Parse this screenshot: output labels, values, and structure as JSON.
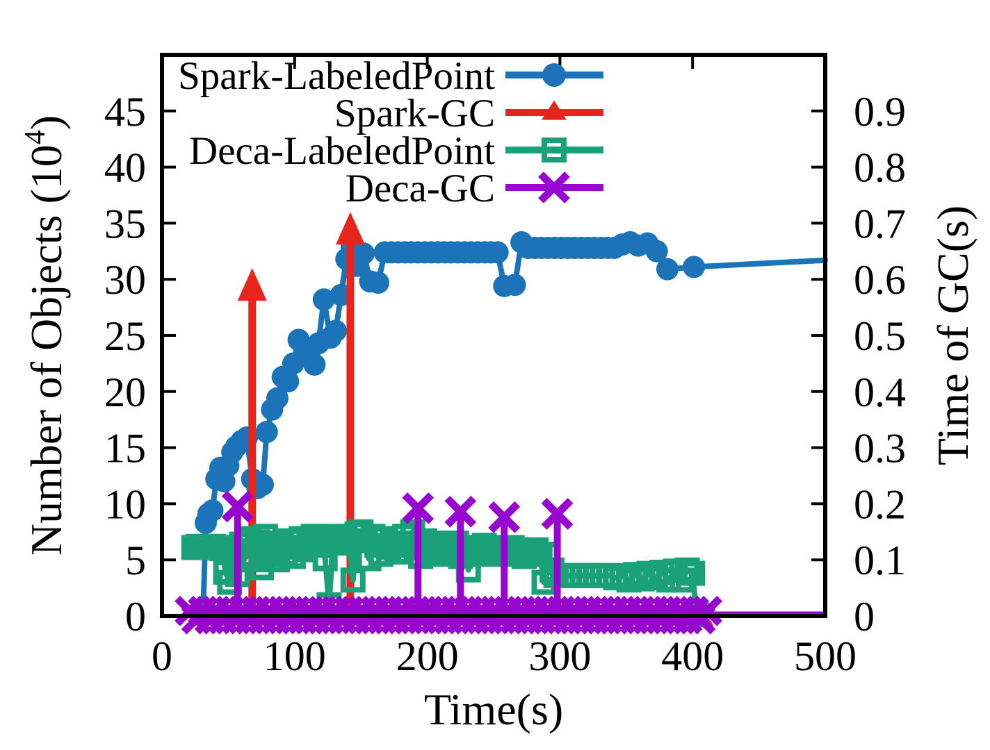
{
  "chart_data": {
    "type": "line",
    "title": "",
    "xlabel": "Time(s)",
    "ylabel_left": {
      "pre": "Number of Objects (10",
      "sup": "4",
      "post": ")"
    },
    "ylabel_right": "Time of GC(s)",
    "xlim": [
      0,
      500
    ],
    "ylim_left": [
      0,
      50
    ],
    "ylim_right": [
      0,
      1.0
    ],
    "xticks": [
      "0",
      "100",
      "200",
      "300",
      "400",
      "500"
    ],
    "yticks_left": [
      "0",
      "5",
      "10",
      "15",
      "20",
      "25",
      "30",
      "35",
      "40",
      "45"
    ],
    "yticks_right": [
      "0",
      "0.1",
      "0.2",
      "0.3",
      "0.4",
      "0.5",
      "0.6",
      "0.7",
      "0.8",
      "0.9"
    ],
    "grid": false,
    "legend_position": "top-left-inside",
    "axis_color": "#000000",
    "background": "#ffffff",
    "series": [
      {
        "id": "spark-labeledpoint",
        "name": "Spark-LabeledPoint",
        "color": "#1b74b7",
        "axis": "left",
        "marker": "circle",
        "style": "line-points",
        "points": [
          [
            31,
            0.2
          ],
          [
            33,
            8.3
          ],
          [
            35,
            9.1
          ],
          [
            38,
            9.4
          ],
          [
            41,
            12.2
          ],
          [
            44,
            13.2
          ],
          [
            47,
            12.0
          ],
          [
            50,
            13.4
          ],
          [
            53,
            14.6
          ],
          [
            56,
            15.1
          ],
          [
            60,
            15.6
          ],
          [
            64,
            15.9
          ],
          [
            68,
            12.2
          ],
          [
            72,
            11.4
          ],
          [
            76,
            11.7
          ],
          [
            79,
            16.4
          ],
          [
            83,
            18.4
          ],
          [
            87,
            19.4
          ],
          [
            91,
            21.3
          ],
          [
            95,
            20.9
          ],
          [
            99,
            22.5
          ],
          [
            103,
            24.6
          ],
          [
            107,
            24.0
          ],
          [
            111,
            23.2
          ],
          [
            115,
            22.4
          ],
          [
            118,
            24.3
          ],
          [
            122,
            28.2
          ],
          [
            127,
            24.8
          ],
          [
            131,
            25.4
          ],
          [
            135,
            28.6
          ],
          [
            139,
            31.8
          ],
          [
            143,
            32.8
          ],
          [
            147,
            31.2
          ],
          [
            152,
            32.3
          ],
          [
            157,
            29.8
          ],
          [
            163,
            29.7
          ],
          [
            168,
            32.4
          ],
          [
            173,
            32.4
          ],
          [
            178,
            32.4
          ],
          [
            183,
            32.4
          ],
          [
            188,
            32.4
          ],
          [
            193,
            32.4
          ],
          [
            198,
            32.4
          ],
          [
            203,
            32.4
          ],
          [
            208,
            32.4
          ],
          [
            213,
            32.4
          ],
          [
            218,
            32.4
          ],
          [
            223,
            32.4
          ],
          [
            228,
            32.4
          ],
          [
            233,
            32.4
          ],
          [
            238,
            32.4
          ],
          [
            243,
            32.4
          ],
          [
            248,
            32.4
          ],
          [
            253,
            32.4
          ],
          [
            258,
            29.4
          ],
          [
            266,
            29.5
          ],
          [
            271,
            33.3
          ],
          [
            276,
            32.8
          ],
          [
            281,
            32.8
          ],
          [
            286,
            32.8
          ],
          [
            291,
            32.8
          ],
          [
            296,
            32.8
          ],
          [
            301,
            32.8
          ],
          [
            306,
            32.8
          ],
          [
            311,
            32.8
          ],
          [
            316,
            32.8
          ],
          [
            321,
            32.8
          ],
          [
            326,
            32.8
          ],
          [
            331,
            32.8
          ],
          [
            336,
            32.8
          ],
          [
            341,
            32.8
          ],
          [
            347,
            33.1
          ],
          [
            353,
            33.3
          ],
          [
            359,
            33.0
          ],
          [
            366,
            33.2
          ],
          [
            373,
            32.5
          ],
          [
            381,
            30.9
          ],
          [
            401,
            31.1
          ],
          [
            500,
            31.7
          ]
        ]
      },
      {
        "id": "spark-gc",
        "name": "Spark-GC",
        "color": "#e8251d",
        "axis": "right",
        "marker": "triangle",
        "style": "impulse-arrows",
        "spikes": [
          [
            68,
            0.62
          ],
          [
            142,
            0.72
          ]
        ],
        "baseline": {
          "t_start": 23,
          "t_end": 408,
          "step": 5,
          "value": 0.004
        }
      },
      {
        "id": "deca-labeledpoint",
        "name": "Deca-LabeledPoint",
        "color": "#1ba178",
        "axis": "left",
        "marker": "square-open",
        "style": "line-points",
        "points": [
          [
            24,
            6.1
          ],
          [
            27,
            6.2
          ],
          [
            30,
            6.1
          ],
          [
            33,
            6.2
          ],
          [
            36,
            6.1
          ],
          [
            39,
            6.2
          ],
          [
            42,
            6.1
          ],
          [
            45,
            6.0
          ],
          [
            48,
            3.9
          ],
          [
            51,
            3.0
          ],
          [
            54,
            5.8
          ],
          [
            57,
            3.7
          ],
          [
            60,
            6.4
          ],
          [
            63,
            5.2
          ],
          [
            66,
            6.9
          ],
          [
            69,
            5.0
          ],
          [
            72,
            6.6
          ],
          [
            75,
            4.3
          ],
          [
            78,
            7.1
          ],
          [
            81,
            5.5
          ],
          [
            84,
            6.5
          ],
          [
            87,
            5.0
          ],
          [
            90,
            6.3
          ],
          [
            93,
            5.5
          ],
          [
            96,
            6.7
          ],
          [
            99,
            5.3
          ],
          [
            102,
            6.1
          ],
          [
            105,
            6.9
          ],
          [
            108,
            5.9
          ],
          [
            111,
            6.5
          ],
          [
            114,
            7.1
          ],
          [
            117,
            6.3
          ],
          [
            120,
            6.9
          ],
          [
            123,
            5.1
          ],
          [
            126,
            1.0
          ],
          [
            129,
            6.7
          ],
          [
            132,
            7.1
          ],
          [
            135,
            6.5
          ],
          [
            138,
            6.9
          ],
          [
            141,
            6.5
          ],
          [
            144,
            3.2
          ],
          [
            147,
            7.3
          ],
          [
            150,
            7.5
          ],
          [
            153,
            6.7
          ],
          [
            156,
            5.1
          ],
          [
            159,
            7.1
          ],
          [
            162,
            6.3
          ],
          [
            165,
            5.5
          ],
          [
            168,
            6.9
          ],
          [
            171,
            6.1
          ],
          [
            174,
            6.5
          ],
          [
            177,
            5.7
          ],
          [
            180,
            6.3
          ],
          [
            183,
            7.1
          ],
          [
            186,
            6.5
          ],
          [
            189,
            7.5
          ],
          [
            192,
            6.1
          ],
          [
            195,
            5.3
          ],
          [
            198,
            6.7
          ],
          [
            201,
            6.3
          ],
          [
            204,
            5.7
          ],
          [
            207,
            6.5
          ],
          [
            210,
            6.1
          ],
          [
            213,
            5.5
          ],
          [
            216,
            6.3
          ],
          [
            219,
            5.9
          ],
          [
            222,
            6.5
          ],
          [
            225,
            5.3
          ],
          [
            228,
            6.1
          ],
          [
            231,
            4.1
          ],
          [
            234,
            5.5
          ],
          [
            237,
            6.1
          ],
          [
            240,
            5.7
          ],
          [
            243,
            6.3
          ],
          [
            246,
            5.9
          ],
          [
            249,
            5.5
          ],
          [
            252,
            6.1
          ],
          [
            255,
            5.7
          ],
          [
            258,
            5.9
          ],
          [
            261,
            5.5
          ],
          [
            264,
            6.1
          ],
          [
            267,
            5.7
          ],
          [
            270,
            5.9
          ],
          [
            273,
            5.3
          ],
          [
            276,
            5.7
          ],
          [
            279,
            5.5
          ],
          [
            282,
            5.9
          ],
          [
            285,
            5.5
          ],
          [
            288,
            3.0
          ],
          [
            291,
            5.5
          ],
          [
            294,
            4.1
          ],
          [
            297,
            3.6
          ],
          [
            302,
            3.6
          ],
          [
            307,
            3.6
          ],
          [
            312,
            3.6
          ],
          [
            317,
            3.6
          ],
          [
            322,
            3.6
          ],
          [
            327,
            3.6
          ],
          [
            332,
            3.6
          ],
          [
            337,
            3.6
          ],
          [
            342,
            3.4
          ],
          [
            347,
            3.6
          ],
          [
            352,
            3.2
          ],
          [
            357,
            3.7
          ],
          [
            362,
            3.3
          ],
          [
            367,
            3.8
          ],
          [
            372,
            3.4
          ],
          [
            377,
            3.9
          ],
          [
            382,
            3.2
          ],
          [
            387,
            4.0
          ],
          [
            392,
            3.2
          ],
          [
            396,
            4.1
          ],
          [
            400,
            3.8
          ],
          [
            403,
            0.1
          ]
        ]
      },
      {
        "id": "deca-gc",
        "name": "Deca-GC",
        "color": "#9606cf",
        "axis": "right",
        "marker": "x",
        "style": "impulses",
        "spikes": [
          [
            57,
            0.195
          ],
          [
            193,
            0.192
          ],
          [
            225,
            0.186
          ],
          [
            258,
            0.176
          ],
          [
            298,
            0.182
          ]
        ],
        "baseline": {
          "t_start": 21,
          "t_end": 411,
          "step": 5,
          "value": 0.004
        },
        "zero_line": {
          "t_start": 21,
          "t_end": 500,
          "value": 0
        }
      }
    ]
  }
}
